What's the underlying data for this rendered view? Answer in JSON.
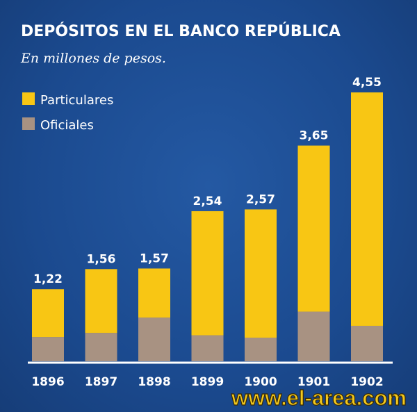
{
  "chart_data": {
    "type": "bar",
    "stacked": true,
    "title": "DEPÓSITOS EN EL BANCO REPÚBLICA",
    "subtitle": "En millones de pesos.",
    "xlabel": "",
    "ylabel": "",
    "ylim": [
      0,
      4.55
    ],
    "grid": false,
    "legend_position": "top-left",
    "categories": [
      "1896",
      "1897",
      "1898",
      "1899",
      "1900",
      "1901",
      "1902"
    ],
    "totals": [
      1.22,
      1.56,
      1.57,
      2.54,
      2.57,
      3.65,
      4.55
    ],
    "total_labels": [
      "1,22",
      "1,56",
      "1,57",
      "2,54",
      "2,57",
      "3,65",
      "4,55"
    ],
    "series": [
      {
        "name": "Oficiales",
        "color": "#a89282",
        "values": [
          0.41,
          0.48,
          0.74,
          0.44,
          0.4,
          0.84,
          0.6
        ]
      },
      {
        "name": "Particulares",
        "color": "#f8c614",
        "values": [
          0.81,
          1.08,
          0.83,
          2.1,
          2.17,
          2.81,
          3.95
        ]
      }
    ],
    "legend": [
      {
        "name": "Particulares",
        "color": "#f8c614"
      },
      {
        "name": "Oficiales",
        "color": "#a89282"
      }
    ]
  },
  "watermark": "www.el-area.com"
}
